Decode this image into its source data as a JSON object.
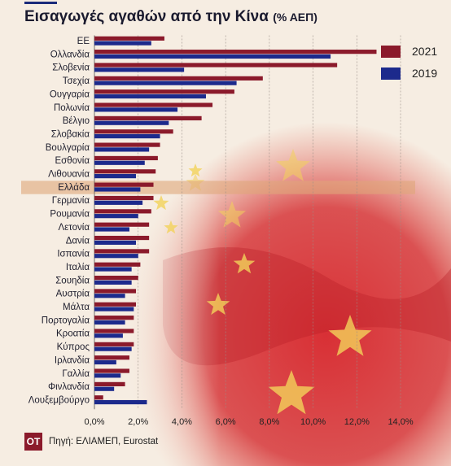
{
  "title": "Εισαγωγές αγαθών από την Κίνα",
  "title_unit": "(% ΑΕΠ)",
  "logo_text": "OT",
  "source": "Πηγή: ΕΛΙΑΜΕΠ, Eurostat",
  "colors": {
    "series_2021": "#8b1a2b",
    "series_2019": "#1c2a8c",
    "highlight": "#e0a77a",
    "flag_red": "#d7262c",
    "flag_star": "#f2d25a"
  },
  "chart_data": {
    "type": "bar",
    "orientation": "horizontal",
    "highlight_category": "Ελλάδα",
    "categories": [
      "ΕΕ",
      "Ολλανδία",
      "Σλοβενία",
      "Τσεχία",
      "Ουγγαρία",
      "Πολωνία",
      "Βέλγιο",
      "Σλοβακία",
      "Βουλγαρία",
      "Εσθονία",
      "Λιθουανία",
      "Ελλάδα",
      "Γερμανία",
      "Ρουμανία",
      "Λετονία",
      "Δανία",
      "Ισπανία",
      "Ιταλία",
      "Σουηδία",
      "Αυστρία",
      "Μάλτα",
      "Πορτογαλία",
      "Κροατία",
      "Κύπρος",
      "Ιρλανδία",
      "Γαλλία",
      "Φινλανδία",
      "Λουξεμβούργο"
    ],
    "series": [
      {
        "name": "2021",
        "values": [
          3.2,
          12.9,
          11.1,
          7.7,
          6.4,
          5.4,
          4.9,
          3.6,
          3.0,
          2.9,
          2.8,
          2.7,
          2.7,
          2.6,
          2.5,
          2.5,
          2.5,
          2.1,
          2.0,
          1.9,
          1.9,
          1.8,
          1.8,
          1.8,
          1.6,
          1.6,
          1.4,
          0.4
        ]
      },
      {
        "name": "2019",
        "values": [
          2.6,
          10.8,
          4.1,
          6.5,
          5.1,
          3.8,
          3.4,
          3.0,
          2.5,
          2.3,
          1.9,
          2.1,
          2.2,
          2.0,
          1.6,
          1.9,
          2.0,
          1.7,
          1.7,
          1.4,
          1.8,
          1.4,
          1.3,
          1.7,
          1.0,
          1.2,
          0.9,
          2.4
        ]
      }
    ],
    "x_ticks": [
      "0,0%",
      "2,0%",
      "4,0%",
      "6,0%",
      "8,0%",
      "10,0%",
      "12,0%",
      "14,0%"
    ],
    "xlim": [
      0,
      14
    ],
    "legend_position": "top-right",
    "grid": true
  }
}
